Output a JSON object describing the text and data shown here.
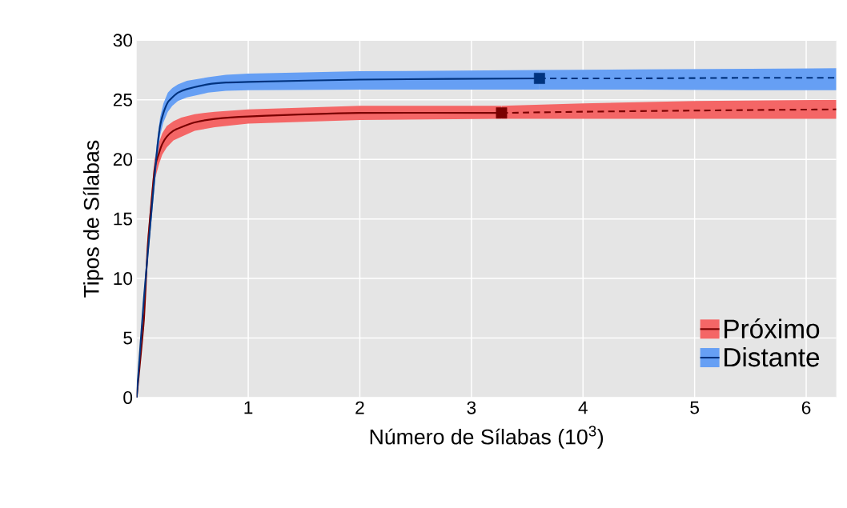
{
  "chart_data": {
    "type": "line",
    "xlabel": "Número de Sílabas (10$^{3}$)",
    "ylabel": "Tipos de Sílabas",
    "xlim": [
      0,
      6.27
    ],
    "xticks": [
      1,
      2,
      3,
      4,
      5,
      6
    ],
    "ylim": [
      0,
      30
    ],
    "yticks": [
      0,
      5,
      10,
      15,
      20,
      25,
      30
    ],
    "grid": true,
    "legend": "bottom right",
    "series": [
      {
        "name": "Próximo",
        "line_style": "solid",
        "color": "#7a0000",
        "x": [
          0,
          0.065,
          0.1,
          0.16,
          0.2,
          0.23,
          0.27,
          0.33,
          0.4,
          0.52,
          0.7,
          1,
          2,
          3.27
        ],
        "values": [
          0,
          6.5,
          12.8,
          19.1,
          20.5,
          21.3,
          21.9,
          22.4,
          22.7,
          23.1,
          23.4,
          23.6,
          23.9,
          23.9
        ],
        "lower": [
          0,
          6,
          12,
          18.2,
          19.6,
          20.4,
          21.0,
          21.6,
          21.9,
          22.4,
          22.7,
          23,
          23.3,
          23.4
        ],
        "upper": [
          0,
          7,
          13.6,
          20,
          21.4,
          22.2,
          22.8,
          23.2,
          23.5,
          23.8,
          24.0,
          24.2,
          24.5,
          24.5
        ]
      },
      {
        "line_style": "dashed",
        "color": "#7a0000",
        "x": [
          3.27,
          4,
          5,
          6.27
        ],
        "values": [
          23.9,
          24.0,
          24.1,
          24.2
        ],
        "lower": [
          23.4,
          23.4,
          23.4,
          23.4
        ],
        "upper": [
          24.5,
          24.7,
          24.9,
          25.0
        ]
      },
      {
        "name": "Distante",
        "line_style": "solid",
        "color": "#00337f",
        "x": [
          0,
          0.065,
          0.14,
          0.18,
          0.21,
          0.24,
          0.28,
          0.32,
          0.37,
          0.45,
          0.64,
          0.8,
          1,
          2,
          3.61
        ],
        "values": [
          0,
          8.3,
          16.4,
          20.5,
          22.8,
          23.9,
          24.8,
          25.2,
          25.6,
          25.9,
          26.3,
          26.45,
          26.5,
          26.7,
          26.8
        ],
        "lower": [
          0,
          7.8,
          15.6,
          19.7,
          22,
          23.1,
          24,
          24.5,
          24.9,
          25.2,
          25.6,
          25.75,
          25.8,
          25.85,
          25.85
        ],
        "upper": [
          0,
          8.8,
          17.2,
          21.3,
          23.5,
          24.7,
          25.6,
          26.0,
          26.3,
          26.6,
          26.9,
          27.1,
          27.2,
          27.4,
          27.5
        ]
      },
      {
        "line_style": "dashed",
        "color": "#00337f",
        "x": [
          3.61,
          4.5,
          5.5,
          6.27
        ],
        "values": [
          26.8,
          26.8,
          26.85,
          26.85
        ],
        "lower": [
          25.85,
          25.85,
          25.8,
          25.8
        ],
        "upper": [
          27.5,
          27.55,
          27.6,
          27.65
        ]
      },
      {
        "type": "scatter",
        "marker": "square",
        "color": "#7a0000",
        "x": [
          3.27
        ],
        "values": [
          23.9
        ]
      },
      {
        "type": "scatter",
        "marker": "square",
        "color": "#00337f",
        "x": [
          3.61
        ],
        "values": [
          26.8
        ]
      }
    ]
  }
}
